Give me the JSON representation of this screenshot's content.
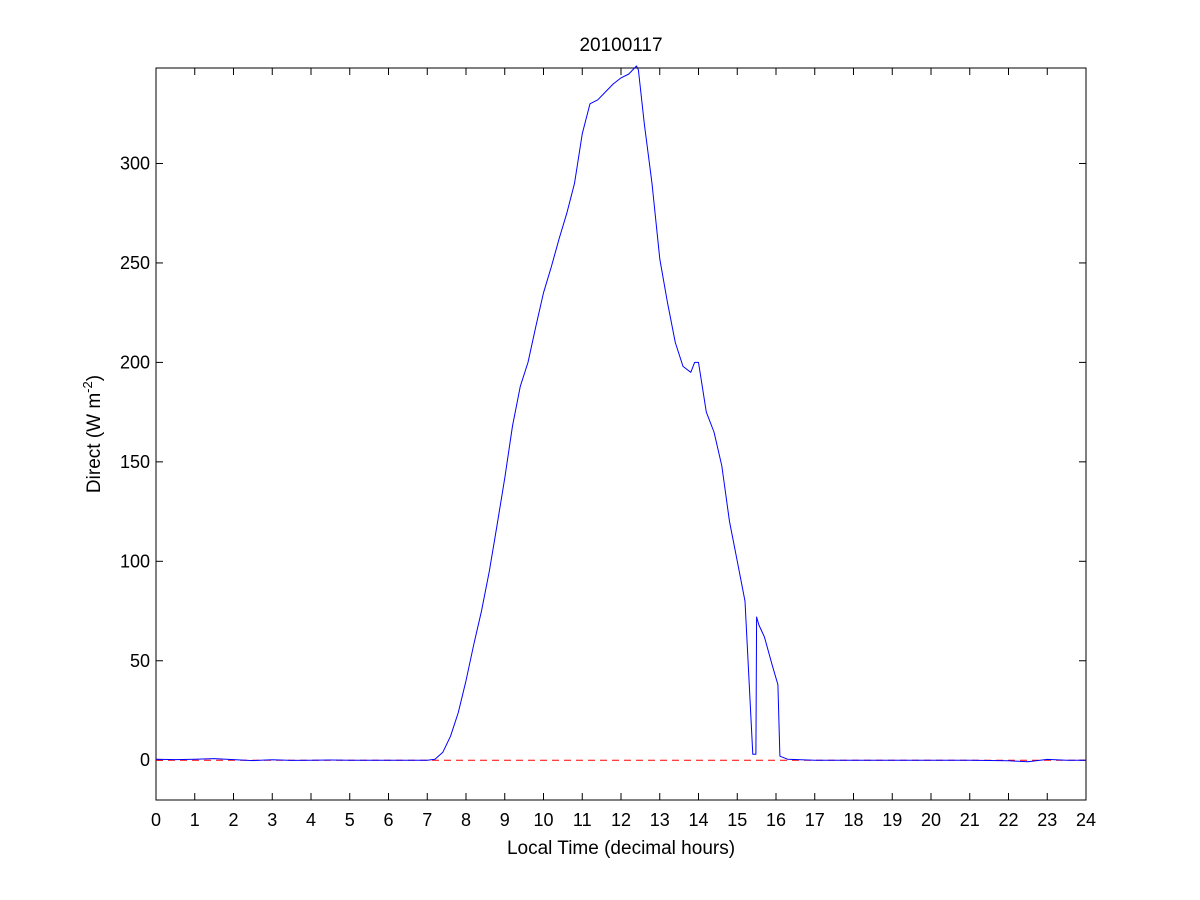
{
  "chart_data": {
    "type": "line",
    "title": "20100117",
    "xlabel": "Local Time (decimal hours)",
    "ylabel": {
      "main": "Direct (W m",
      "sup": "-2",
      "close": ")"
    },
    "xlim": [
      0,
      24
    ],
    "ylim": [
      -20,
      348
    ],
    "xticks": [
      0,
      1,
      2,
      3,
      4,
      5,
      6,
      7,
      8,
      9,
      10,
      11,
      12,
      13,
      14,
      15,
      16,
      17,
      18,
      19,
      20,
      21,
      22,
      23,
      24
    ],
    "yticks": [
      0,
      50,
      100,
      150,
      200,
      250,
      300
    ],
    "grid": false,
    "reference_line": {
      "y": 0,
      "color": "#ff0000",
      "style": "dashed"
    },
    "series": [
      {
        "color": "#0000ff",
        "x": [
          0.0,
          0.5,
          1.0,
          1.5,
          2.0,
          2.5,
          3.0,
          3.5,
          4.0,
          4.5,
          5.0,
          5.5,
          6.0,
          6.5,
          7.0,
          7.2,
          7.4,
          7.6,
          7.8,
          8.0,
          8.2,
          8.4,
          8.6,
          8.8,
          9.0,
          9.2,
          9.4,
          9.6,
          9.8,
          10.0,
          10.2,
          10.4,
          10.6,
          10.8,
          11.0,
          11.2,
          11.4,
          11.6,
          11.8,
          12.0,
          12.2,
          12.4,
          12.45,
          12.6,
          12.8,
          13.0,
          13.2,
          13.4,
          13.6,
          13.8,
          13.9,
          14.0,
          14.2,
          14.4,
          14.6,
          14.8,
          15.0,
          15.2,
          15.4,
          15.48,
          15.5,
          15.56,
          15.7,
          15.9,
          16.05,
          16.1,
          16.3,
          17.0,
          18.0,
          19.0,
          20.0,
          21.0,
          22.0,
          22.5,
          23.0,
          23.5,
          24.0
        ],
        "y": [
          0.5,
          0.3,
          0.5,
          0.8,
          0.3,
          -0.2,
          0.2,
          -0.1,
          0.0,
          0.1,
          0.0,
          0.0,
          0.0,
          0.0,
          0.0,
          0.5,
          4,
          12,
          24,
          40,
          58,
          75,
          95,
          118,
          142,
          168,
          188,
          200,
          218,
          235,
          248,
          262,
          275,
          290,
          315,
          330,
          332,
          336,
          340,
          343,
          345,
          349,
          347,
          320,
          290,
          252,
          230,
          210,
          198,
          195,
          200,
          200,
          175,
          165,
          148,
          120,
          100,
          80,
          3,
          3,
          72,
          68,
          62,
          48,
          38,
          2,
          0.5,
          0.0,
          0.0,
          0.0,
          0.0,
          0.0,
          -0.3,
          -0.8,
          0.4,
          0.0,
          0.0
        ]
      }
    ]
  }
}
